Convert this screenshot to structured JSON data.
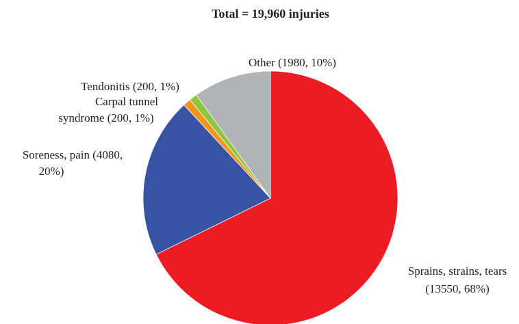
{
  "chart_data": {
    "type": "pie",
    "title": "Total = 19,960 injuries",
    "values": [
      13550,
      4080,
      200,
      200,
      1980
    ],
    "value_labels": [
      [
        "Sprains, strains, tears",
        "(13550, 68%)"
      ],
      [
        "Soreness, pain (4080,",
        "20%)"
      ],
      [
        "Carpal tunnel",
        "syndrome (200, 1%)"
      ],
      [
        "Tendonitis (200, 1%)"
      ],
      [
        "Other (1980, 10%)"
      ]
    ],
    "colors": [
      "#ed1c24",
      "#3953a4",
      "#f7941d",
      "#8dc63f",
      "#b1b3b6"
    ]
  }
}
